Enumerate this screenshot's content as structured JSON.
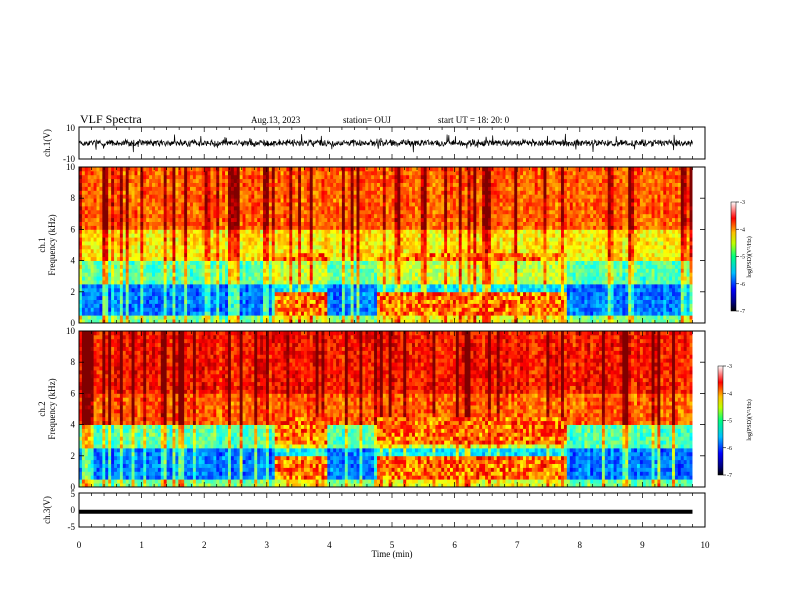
{
  "header": {
    "title": "VLF Spectra",
    "date": "Aug.13, 2023",
    "station": "station= OUJ",
    "start_ut": "start  UT =   18: 20: 0"
  },
  "chart_data": [
    {
      "type": "line",
      "panel": "ch1_waveform",
      "ylabel": "ch.1(V)",
      "ylim": [
        -10,
        10
      ],
      "yticks": [
        "10",
        "-10"
      ],
      "xlim": [
        0,
        10
      ],
      "trace": "noisy waveform around 0 V, amplitude mostly within ±3 V"
    },
    {
      "type": "heatmap",
      "panel": "ch1_spectrogram",
      "ylabel": "ch.1\nFrequency (kHz)",
      "ylim": [
        0,
        10
      ],
      "yticks": [
        "0",
        "2",
        "4",
        "6",
        "8",
        "10"
      ],
      "xlim": [
        0,
        10
      ],
      "colorbar": {
        "label": "log(PSD)(V²/Hz)",
        "range": [
          -7,
          -3
        ],
        "ticks": [
          "-3",
          "-4",
          "-5",
          "-6",
          "-7"
        ]
      },
      "bursts_min": [
        [
          3.15,
          3.95
        ],
        [
          4.75,
          7.8
        ]
      ],
      "burst_bands_khz": [
        [
          0.4,
          2.1
        ],
        [
          3.9,
          4.6
        ]
      ]
    },
    {
      "type": "heatmap",
      "panel": "ch2_spectrogram",
      "ylabel": "ch.2\nFrequency (kHz)",
      "ylim": [
        0,
        10
      ],
      "yticks": [
        "0",
        "2",
        "4",
        "6",
        "8",
        "10"
      ],
      "xlim": [
        0,
        10
      ],
      "colorbar": {
        "label": "log(PSD)(V²/Hz)",
        "range": [
          -7,
          -3
        ],
        "ticks": [
          "-3",
          "-4",
          "-5",
          "-6",
          "-7"
        ]
      },
      "bursts_min": [
        [
          3.15,
          3.95
        ],
        [
          4.75,
          7.8
        ]
      ],
      "burst_bands_khz": [
        [
          0.4,
          2.1
        ],
        [
          2.8,
          4.6
        ]
      ]
    },
    {
      "type": "line",
      "panel": "ch3",
      "ylabel": "ch.3(V)",
      "ylim": [
        -5,
        5
      ],
      "yticks": [
        "5",
        "0",
        "-5"
      ],
      "xlim": [
        0,
        10
      ],
      "x": [
        0,
        9.8
      ],
      "y": [
        -0.5,
        -0.5
      ]
    }
  ],
  "xaxis": {
    "label": "Time  (min)",
    "ticks": [
      "0",
      "1",
      "2",
      "3",
      "4",
      "5",
      "6",
      "7",
      "8",
      "9",
      "10"
    ],
    "data_end_min": 9.8
  },
  "colors": {
    "colormap": [
      "#00007f",
      "#0000ff",
      "#007fff",
      "#00ffff",
      "#7fff7f",
      "#ffff00",
      "#ff7f00",
      "#ff0000",
      "#7f0000"
    ]
  }
}
